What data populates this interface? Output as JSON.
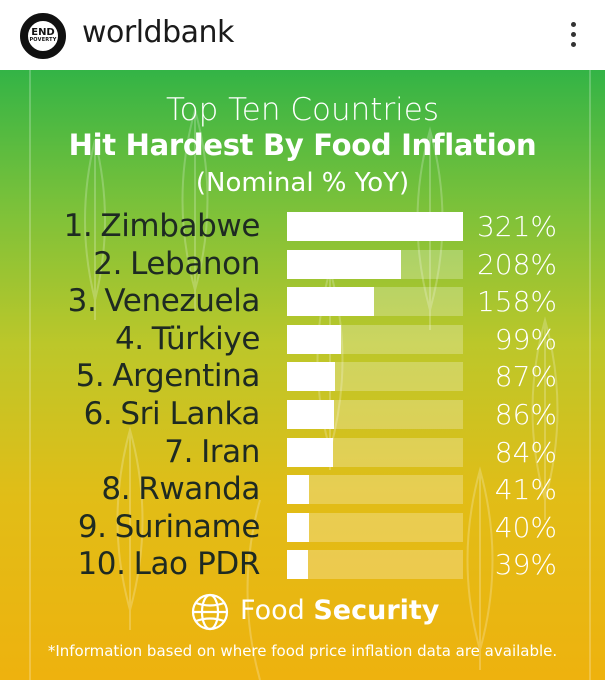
{
  "post": {
    "account": {
      "avatar_line1": "END",
      "avatar_line2": "POVERTY",
      "username": "worldbank"
    },
    "menu_icon": "more-vertical-icon"
  },
  "poster": {
    "title_line1": "Top Ten Countries",
    "title_line2": "Hit Hardest By Food Inflation",
    "title_line3": "(Nominal % YoY)",
    "brand_icon": "globe-icon",
    "brand_word1": "Food",
    "brand_word2": "Security",
    "footnote": "*Information based on where food price inflation data are available.",
    "colors": {
      "gradient_top": "#33b446",
      "gradient_bottom": "#eeb20e",
      "bar": "#ffffff"
    }
  },
  "chart_data": {
    "type": "bar",
    "title": "Top Ten Countries Hit Hardest By Food Inflation",
    "subtitle": "(Nominal % YoY)",
    "orientation": "horizontal",
    "ranks": [
      "1.",
      "2.",
      "3.",
      "4.",
      "5.",
      "6.",
      "7.",
      "8.",
      "9.",
      "10."
    ],
    "categories": [
      "Zimbabwe",
      "Lebanon",
      "Venezuela",
      "Türkiye",
      "Argentina",
      "Sri Lanka",
      "Iran",
      "Rwanda",
      "Suriname",
      "Lao PDR"
    ],
    "values": [
      321,
      208,
      158,
      99,
      87,
      86,
      84,
      41,
      40,
      39
    ],
    "value_labels": [
      "321%",
      "208%",
      "158%",
      "99%",
      "87%",
      "86%",
      "84%",
      "41%",
      "40%",
      "39%"
    ],
    "xlim": [
      0,
      321
    ]
  }
}
